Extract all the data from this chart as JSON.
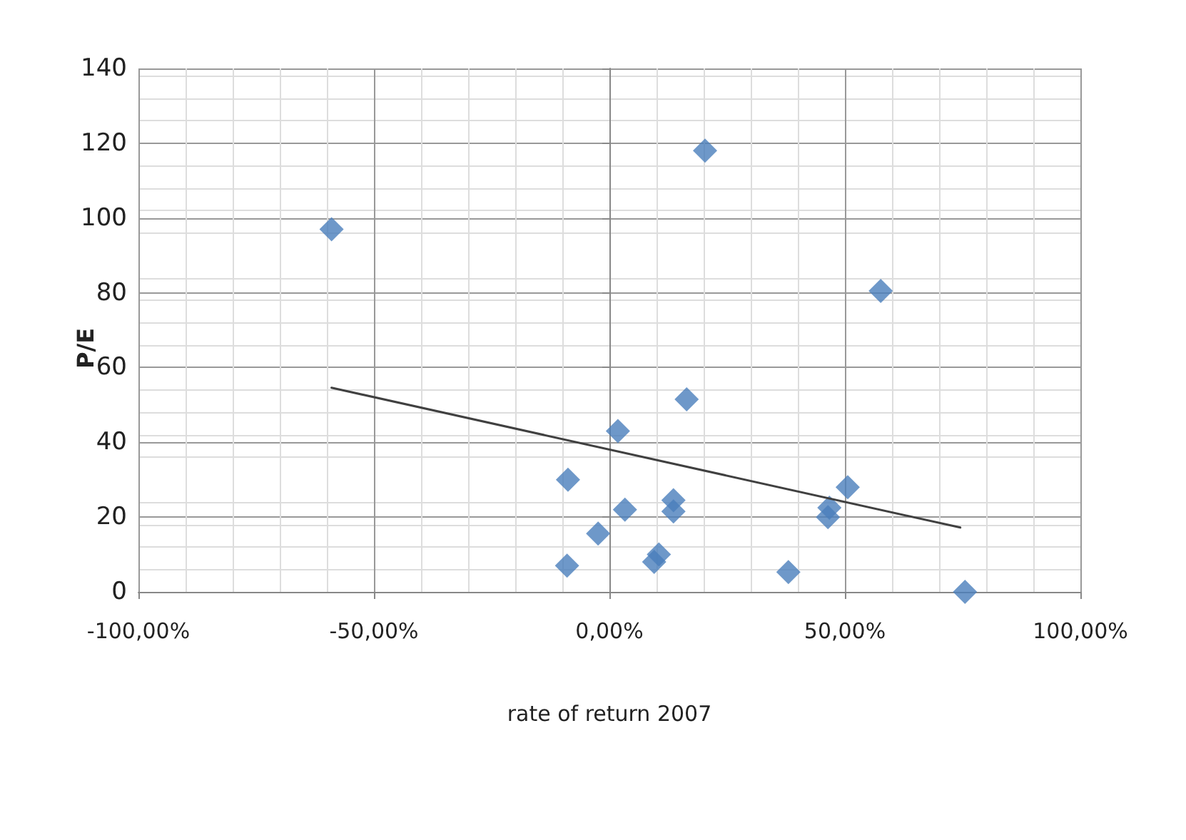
{
  "chart_data": {
    "type": "scatter",
    "xlabel": "rate of return 2007",
    "ylabel": "P/E",
    "xlim": [
      -100,
      100
    ],
    "xticks": [
      {
        "value": -100,
        "label": "-100,00%"
      },
      {
        "value": -50,
        "label": "-50,00%"
      },
      {
        "value": 0,
        "label": "0,00%"
      },
      {
        "value": 50,
        "label": "50,00%"
      },
      {
        "value": 100,
        "label": "100,00%"
      }
    ],
    "ylim": [
      0,
      140
    ],
    "yticks": [
      0,
      20,
      40,
      60,
      80,
      100,
      120,
      140
    ],
    "grid": true,
    "marker": "diamond",
    "series": [
      {
        "color": "#4a7ebb",
        "x": [
          -59,
          20.3,
          57.6,
          16.4,
          1.8,
          -8.8,
          3.3,
          13.6,
          13.6,
          -2.4,
          -9,
          9.5,
          10.5,
          38,
          46.4,
          46.7,
          50.6,
          75.5
        ],
        "values": [
          97,
          118,
          80.5,
          51.5,
          43,
          30,
          22,
          24.5,
          21.5,
          15.6,
          7,
          8,
          10,
          5.3,
          20,
          22.5,
          28,
          0
        ]
      },
      {
        "type": "line",
        "color": "#404040",
        "marker": "none",
        "x": [
          -59,
          74.5
        ],
        "values": [
          54.6,
          17.2
        ]
      }
    ]
  }
}
